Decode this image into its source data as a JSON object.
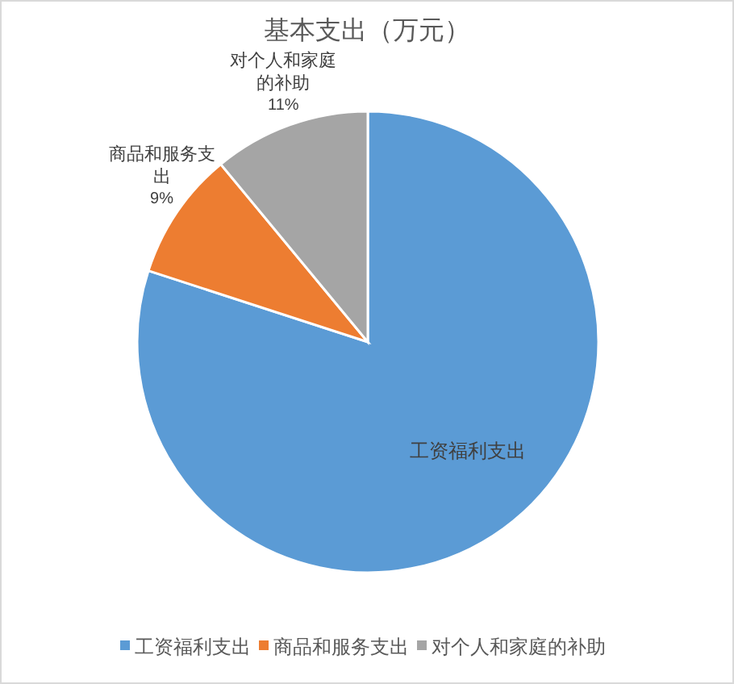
{
  "chart_data": {
    "type": "pie",
    "title": "基本支出（万元）",
    "categories": [
      "工资福利支出",
      "商品和服务支出",
      "对个人和家庭的补助"
    ],
    "values": [
      80,
      9,
      11
    ],
    "colors": [
      "#5b9bd5",
      "#ed7d31",
      "#a5a5a5"
    ],
    "value_labels": [
      null,
      "9%",
      "11%"
    ],
    "legend": "bottom"
  }
}
